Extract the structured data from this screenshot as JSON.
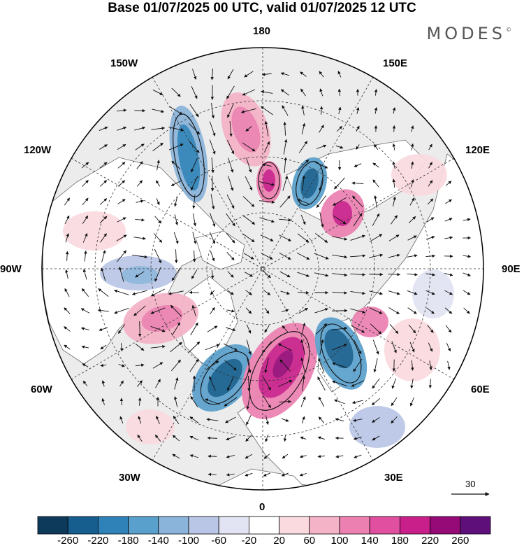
{
  "title": "Base 01/07/2025 00 UTC, valid 01/07/2025 12 UTC",
  "brand": {
    "name": "MODES",
    "mark": "©"
  },
  "map": {
    "projection": "north-polar-stereographic",
    "longitude_labels": [
      "180",
      "150E",
      "120E",
      "90E",
      "60E",
      "30E",
      "0",
      "30W",
      "60W",
      "90W",
      "120W",
      "150W"
    ],
    "colors": {
      "ocean": "#ececec",
      "land": "#ffffff",
      "coastline": "#6a6a6a",
      "grid": "#333333",
      "arrow": "#111111"
    }
  },
  "vector_scale": {
    "label": "30"
  },
  "colorbar": {
    "tick_labels": [
      "-260",
      "-220",
      "-180",
      "-140",
      "-100",
      "-60",
      "-20",
      "20",
      "60",
      "100",
      "140",
      "180",
      "220",
      "260"
    ],
    "colors": [
      "#0d3a5a",
      "#155e8e",
      "#2e82b8",
      "#5aa0cc",
      "#8ab4da",
      "#b9c6e6",
      "#e2e3f3",
      "#ffffff",
      "#fadadf",
      "#f5b3c7",
      "#ec80b0",
      "#e04fa0",
      "#c81f8a",
      "#960a78",
      "#5e0f7a"
    ]
  }
}
